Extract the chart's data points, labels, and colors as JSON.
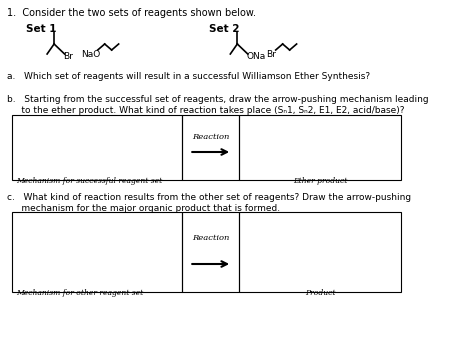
{
  "title": "1.  Consider the two sets of reagents shown below.",
  "set1_label": "Set 1",
  "set2_label": "Set 2",
  "qa": "a.   Which set of reagents will result in a successful Williamson Ether Synthesis?",
  "qb_line1": "b.   Starting from the successful set of reagents, draw the arrow-pushing mechanism leading",
  "qb_line2": "     to the ether product. What kind of reaction takes place (Sₙ1, Sₙ2, E1, E2, acid/base)?",
  "qc_line1": "c.   What kind of reaction results from the other set of reagents? Draw the arrow-pushing",
  "qc_line2": "     mechanism for the major organic product that is formed.",
  "box_b_label_left": "Mechanism for successful reagent set",
  "box_b_label_right": "Ether product",
  "box_b_reaction": "Reaction",
  "box_c_label_left": "Mechanism for other reagent set",
  "box_c_label_right": "Product",
  "box_c_reaction": "Reaction",
  "bg_color": "#ffffff",
  "text_color": "#000000",
  "box_color": "#000000"
}
